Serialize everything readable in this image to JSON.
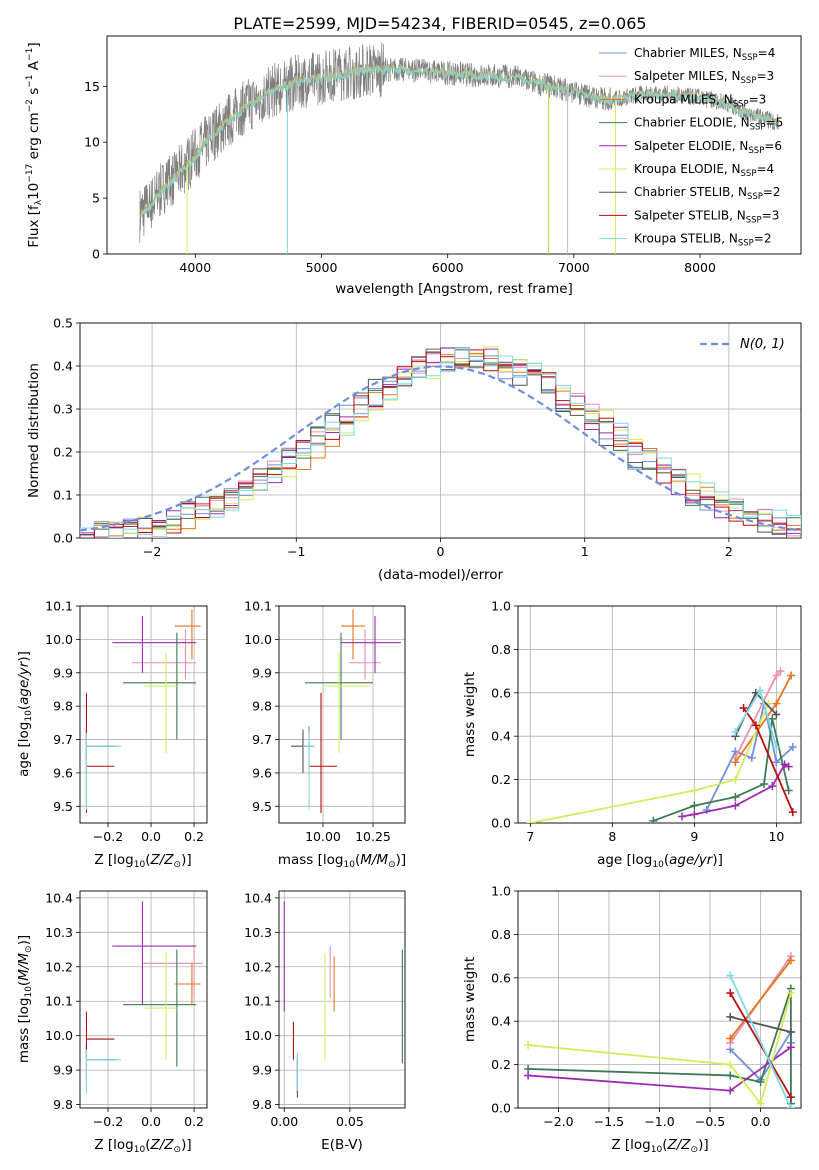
{
  "title": "PLATE=2599, MJD=54234, FIBERID=0545, z=0.065",
  "colors": {
    "Chabrier MILES": "#6f8fdd",
    "Salpeter MILES": "#e98fb2",
    "Kroupa MILES": "#e8741f",
    "Chabrier ELODIE": "#3d7a55",
    "Salpeter ELODIE": "#9b2db0",
    "Kroupa ELODIE": "#d7ea5d",
    "Chabrier STELIB": "#555555",
    "Salpeter STELIB": "#b80f0f",
    "Kroupa STELIB": "#7fd8e2",
    "data": "#808080"
  },
  "chart_data": [
    {
      "id": "spectrum",
      "type": "line",
      "xlabel": "wavelength [Angstrom, rest frame]",
      "ylabel": "Flux [f_λ10^-17 erg cm^-2 s^-1 A^-1]",
      "xlim": [
        3300,
        8800
      ],
      "ylim": [
        0,
        19.5
      ],
      "xticks": [
        4000,
        5000,
        6000,
        7000,
        8000
      ],
      "yticks": [
        0,
        5,
        10,
        15
      ],
      "grid": false,
      "legend_position": "top-right",
      "legend": [
        {
          "name": "Chabrier MILES",
          "nssp": "4"
        },
        {
          "name": "Salpeter MILES",
          "nssp": "3"
        },
        {
          "name": "Kroupa MILES",
          "nssp": "3"
        },
        {
          "name": "Chabrier ELODIE",
          "nssp": "5"
        },
        {
          "name": "Salpeter ELODIE",
          "nssp": "6"
        },
        {
          "name": "Kroupa ELODIE",
          "nssp": "4"
        },
        {
          "name": "Chabrier STELIB",
          "nssp": "2"
        },
        {
          "name": "Salpeter STELIB",
          "nssp": "3"
        },
        {
          "name": "Kroupa STELIB",
          "nssp": "2"
        }
      ],
      "continuum": {
        "x": [
          3560,
          3650,
          3750,
          3850,
          3950,
          4050,
          4150,
          4250,
          4350,
          4450,
          4550,
          4650,
          4750,
          4850,
          5000,
          5200,
          5400,
          5600,
          5800,
          6000,
          6200,
          6400,
          6550,
          6700,
          6900,
          7100,
          7250,
          7400,
          7600,
          7800,
          8000,
          8200,
          8400,
          8600
        ],
        "y": [
          3.5,
          4.5,
          6.0,
          7.0,
          8.2,
          9.5,
          10.8,
          11.8,
          12.8,
          13.5,
          14.2,
          14.8,
          15.2,
          15.5,
          15.8,
          16.2,
          16.5,
          16.5,
          16.4,
          16.2,
          16.0,
          15.9,
          15.8,
          15.3,
          14.8,
          14.2,
          13.8,
          14.0,
          14.4,
          14.2,
          14.0,
          13.5,
          12.5,
          11.8
        ]
      },
      "sharp_features": [
        {
          "x": 3935,
          "y": 0
        },
        {
          "x": 4730,
          "y": 0
        },
        {
          "x": 6800,
          "y": 0
        },
        {
          "x": 6950,
          "y": 0
        },
        {
          "x": 7330,
          "y": 0
        }
      ]
    },
    {
      "id": "residual-hist",
      "type": "line",
      "xlabel": "(data-model)/error",
      "ylabel": "Normed distribution",
      "xlim": [
        -2.5,
        2.5
      ],
      "ylim": [
        0,
        0.5
      ],
      "xticks": [
        -2,
        -1,
        0,
        1,
        2
      ],
      "yticks": [
        0.0,
        0.1,
        0.2,
        0.3,
        0.4,
        0.5
      ],
      "grid": true,
      "legend_position": "top-right",
      "legend_label": "N(0, 1)",
      "series_colors": [
        "#6f8fdd",
        "#e98fb2",
        "#e8741f",
        "#3d7a55",
        "#9b2db0",
        "#d7ea5d",
        "#555555",
        "#b80f0f",
        "#7fd8e2"
      ]
    },
    {
      "id": "age-vs-Z",
      "type": "scatter",
      "xlabel": "Z [log10(Z/Z⊙)]",
      "ylabel": "age  [log10(age/yr)]",
      "xlim": [
        -0.33,
        0.26
      ],
      "ylim": [
        9.45,
        10.1
      ],
      "xticks": [
        -0.2,
        0.0,
        0.2
      ],
      "yticks": [
        9.5,
        9.6,
        9.7,
        9.8,
        9.9,
        10.0,
        10.1
      ],
      "grid": true,
      "points": [
        {
          "c": "Chabrier MILES",
          "x": -0.3,
          "y": 9.68,
          "dx": [
            0.0,
            0.0
          ],
          "dy": [
            0.06,
            0.06
          ]
        },
        {
          "c": "Salpeter MILES",
          "x": 0.16,
          "y": 9.93,
          "dx": [
            0.25,
            0.05
          ],
          "dy": [
            0.05,
            0.1
          ]
        },
        {
          "c": "Kroupa MILES",
          "x": 0.19,
          "y": 10.04,
          "dx": [
            0.08,
            0.04
          ],
          "dy": [
            0.1,
            0.05
          ]
        },
        {
          "c": "Chabrier ELODIE",
          "x": 0.12,
          "y": 9.87,
          "dx": [
            0.25,
            0.09
          ],
          "dy": [
            0.17,
            0.15
          ]
        },
        {
          "c": "Salpeter ELODIE",
          "x": -0.04,
          "y": 9.99,
          "dx": [
            0.14,
            0.25
          ],
          "dy": [
            0.09,
            0.08
          ]
        },
        {
          "c": "Kroupa ELODIE",
          "x": 0.07,
          "y": 9.86,
          "dx": [
            0.1,
            0.05
          ],
          "dy": [
            0.2,
            0.1
          ]
        },
        {
          "c": "Chabrier STELIB",
          "x": -0.3,
          "y": 9.68,
          "dx": [
            0.0,
            0.14
          ],
          "dy": [
            0.08,
            0.05
          ]
        },
        {
          "c": "Salpeter STELIB",
          "x": -0.3,
          "y": 9.62,
          "dx": [
            0.0,
            0.13
          ],
          "dy": [
            0.14,
            0.22
          ]
        },
        {
          "c": "Kroupa STELIB",
          "x": -0.3,
          "y": 9.68,
          "dx": [
            0.0,
            0.16
          ],
          "dy": [
            0.19,
            0.04
          ]
        }
      ]
    },
    {
      "id": "age-vs-mass",
      "type": "scatter",
      "xlabel": "mass [log10(M/M⊙)]",
      "ylabel": "",
      "xlim": [
        9.78,
        10.41
      ],
      "ylim": [
        9.45,
        10.1
      ],
      "xticks": [
        10.0,
        10.25
      ],
      "yticks": [
        9.5,
        9.6,
        9.7,
        9.8,
        9.9,
        10.0,
        10.1
      ],
      "grid": true,
      "points": [
        {
          "c": "Chabrier MILES",
          "x": 9.93,
          "y": 9.68,
          "dx": [
            0.0,
            0.0
          ],
          "dy": [
            0.06,
            0.06
          ]
        },
        {
          "c": "Salpeter MILES",
          "x": 10.21,
          "y": 9.93,
          "dx": [
            0.08,
            0.08
          ],
          "dy": [
            0.05,
            0.1
          ]
        },
        {
          "c": "Kroupa MILES",
          "x": 10.15,
          "y": 10.04,
          "dx": [
            0.06,
            0.06
          ],
          "dy": [
            0.1,
            0.05
          ]
        },
        {
          "c": "Chabrier ELODIE",
          "x": 10.09,
          "y": 9.87,
          "dx": [
            0.18,
            0.16
          ],
          "dy": [
            0.17,
            0.15
          ]
        },
        {
          "c": "Salpeter ELODIE",
          "x": 10.26,
          "y": 9.99,
          "dx": [
            0.17,
            0.13
          ],
          "dy": [
            0.09,
            0.08
          ]
        },
        {
          "c": "Kroupa ELODIE",
          "x": 10.08,
          "y": 9.86,
          "dx": [
            0.08,
            0.16
          ],
          "dy": [
            0.2,
            0.1
          ]
        },
        {
          "c": "Chabrier STELIB",
          "x": 9.9,
          "y": 9.68,
          "dx": [
            0.06,
            0.05
          ],
          "dy": [
            0.08,
            0.05
          ]
        },
        {
          "c": "Salpeter STELIB",
          "x": 9.99,
          "y": 9.62,
          "dx": [
            0.06,
            0.08
          ],
          "dy": [
            0.14,
            0.22
          ]
        },
        {
          "c": "Kroupa STELIB",
          "x": 9.93,
          "y": 9.68,
          "dx": [
            0.03,
            0.03
          ],
          "dy": [
            0.19,
            0.04
          ]
        }
      ]
    },
    {
      "id": "weight-vs-age",
      "type": "line",
      "xlabel": "age  [log10(age/yr)]",
      "ylabel": "mass weight",
      "xlim": [
        6.85,
        10.3
      ],
      "ylim": [
        0,
        1.0
      ],
      "xticks": [
        7,
        8,
        9,
        10
      ],
      "yticks": [
        0.0,
        0.2,
        0.4,
        0.6,
        0.8,
        1.0
      ],
      "grid": true,
      "series": [
        {
          "name": "Chabrier MILES",
          "x": [
            9.15,
            9.5,
            9.7,
            9.85,
            10.0,
            10.2
          ],
          "y": [
            0.06,
            0.33,
            0.3,
            0.55,
            0.28,
            0.35
          ]
        },
        {
          "name": "Salpeter MILES",
          "x": [
            9.5,
            10.0,
            10.05
          ],
          "y": [
            0.3,
            0.68,
            0.7
          ]
        },
        {
          "name": "Kroupa MILES",
          "x": [
            9.5,
            10.0,
            10.18
          ],
          "y": [
            0.28,
            0.55,
            0.68
          ]
        },
        {
          "name": "Chabrier ELODIE",
          "x": [
            8.5,
            9.0,
            9.5,
            9.85,
            9.95,
            10.15
          ],
          "y": [
            0.01,
            0.08,
            0.12,
            0.18,
            0.48,
            0.15
          ]
        },
        {
          "name": "Salpeter ELODIE",
          "x": [
            8.85,
            9.0,
            9.5,
            9.95,
            10.1,
            10.15
          ],
          "y": [
            0.03,
            0.04,
            0.08,
            0.17,
            0.27,
            0.26
          ]
        },
        {
          "name": "Kroupa ELODIE",
          "x": [
            7.0,
            9.0,
            9.5,
            9.9
          ],
          "y": [
            0.0,
            0.15,
            0.2,
            0.55
          ]
        },
        {
          "name": "Chabrier STELIB",
          "x": [
            9.5,
            9.75,
            10.0
          ],
          "y": [
            0.4,
            0.6,
            0.5
          ]
        },
        {
          "name": "Salpeter STELIB",
          "x": [
            9.6,
            9.75,
            10.2
          ],
          "y": [
            0.53,
            0.45,
            0.05
          ]
        },
        {
          "name": "Kroupa STELIB",
          "x": [
            9.5,
            9.8,
            10.0
          ],
          "y": [
            0.42,
            0.61,
            0.35
          ]
        }
      ]
    },
    {
      "id": "mass-vs-Z",
      "type": "scatter",
      "xlabel": "Z [log10(Z/Z⊙)]",
      "ylabel": "mass [log10(M/M⊙)]",
      "xlim": [
        -0.33,
        0.26
      ],
      "ylim": [
        9.79,
        10.42
      ],
      "xticks": [
        -0.2,
        0.0,
        0.2
      ],
      "yticks": [
        9.8,
        9.9,
        10.0,
        10.1,
        10.2,
        10.3,
        10.4
      ],
      "grid": true,
      "points": [
        {
          "c": "Chabrier MILES",
          "x": -0.3,
          "y": 9.93,
          "dx": [
            0.0,
            0.0
          ],
          "dy": [
            0.05,
            0.04
          ]
        },
        {
          "c": "Salpeter MILES",
          "x": 0.2,
          "y": 10.21,
          "dx": [
            0.24,
            0.04
          ],
          "dy": [
            0.1,
            0.05
          ]
        },
        {
          "c": "Kroupa MILES",
          "x": 0.19,
          "y": 10.15,
          "dx": [
            0.08,
            0.04
          ],
          "dy": [
            0.06,
            0.06
          ]
        },
        {
          "c": "Chabrier ELODIE",
          "x": 0.12,
          "y": 10.09,
          "dx": [
            0.25,
            0.09
          ],
          "dy": [
            0.18,
            0.16
          ]
        },
        {
          "c": "Salpeter ELODIE",
          "x": -0.04,
          "y": 10.26,
          "dx": [
            0.14,
            0.25
          ],
          "dy": [
            0.17,
            0.13
          ]
        },
        {
          "c": "Kroupa ELODIE",
          "x": 0.07,
          "y": 10.08,
          "dx": [
            0.1,
            0.05
          ],
          "dy": [
            0.15,
            0.16
          ]
        },
        {
          "c": "Chabrier STELIB",
          "x": -0.3,
          "y": 9.93,
          "dx": [
            0.0,
            0.14
          ],
          "dy": [
            0.06,
            0.05
          ]
        },
        {
          "c": "Salpeter STELIB",
          "x": -0.3,
          "y": 9.99,
          "dx": [
            0.0,
            0.13
          ],
          "dy": [
            0.06,
            0.08
          ]
        },
        {
          "c": "Kroupa STELIB",
          "x": -0.3,
          "y": 9.93,
          "dx": [
            0.0,
            0.16
          ],
          "dy": [
            0.1,
            0.03
          ]
        }
      ]
    },
    {
      "id": "mass-vs-ebv",
      "type": "scatter",
      "xlabel": "E(B-V)",
      "ylabel": "",
      "xlim": [
        -0.004,
        0.092
      ],
      "ylim": [
        9.79,
        10.42
      ],
      "xticks": [
        0.0,
        0.05
      ],
      "yticks": [
        9.8,
        9.9,
        10.0,
        10.1,
        10.2,
        10.3,
        10.4
      ],
      "grid": true,
      "points": [
        {
          "c": "Chabrier MILES",
          "x": 0.01,
          "y": 9.9,
          "dx": [
            0,
            0
          ],
          "dy": [
            0.05,
            0.04
          ]
        },
        {
          "c": "Salpeter MILES",
          "x": 0.035,
          "y": 10.21,
          "dx": [
            0,
            0
          ],
          "dy": [
            0.1,
            0.05
          ]
        },
        {
          "c": "Kroupa MILES",
          "x": 0.038,
          "y": 10.13,
          "dx": [
            0,
            0
          ],
          "dy": [
            0.06,
            0.1
          ]
        },
        {
          "c": "Chabrier ELODIE",
          "x": 0.09,
          "y": 10.08,
          "dx": [
            0,
            0
          ],
          "dy": [
            0.16,
            0.17
          ]
        },
        {
          "c": "Salpeter ELODIE",
          "x": 0.0,
          "y": 10.24,
          "dx": [
            0,
            0
          ],
          "dy": [
            0.17,
            0.15
          ]
        },
        {
          "c": "Kroupa ELODIE",
          "x": 0.031,
          "y": 10.08,
          "dx": [
            0,
            0
          ],
          "dy": [
            0.15,
            0.16
          ]
        },
        {
          "c": "Chabrier STELIB",
          "x": 0.01,
          "y": 9.88,
          "dx": [
            0,
            0
          ],
          "dy": [
            0.06,
            0.05
          ]
        },
        {
          "c": "Salpeter STELIB",
          "x": 0.007,
          "y": 9.99,
          "dx": [
            0,
            0
          ],
          "dy": [
            0.06,
            0.05
          ]
        },
        {
          "c": "Kroupa STELIB",
          "x": 0.01,
          "y": 9.9,
          "dx": [
            0,
            0
          ],
          "dy": [
            0.06,
            0.05
          ]
        }
      ]
    },
    {
      "id": "weight-vs-Z",
      "type": "line",
      "xlabel": "Z [log10(Z/Z⊙)]",
      "ylabel": "mass weight",
      "xlim": [
        -2.4,
        0.4
      ],
      "ylim": [
        0,
        1.0
      ],
      "xticks": [
        -2.0,
        -1.5,
        -1.0,
        -0.5,
        0.0
      ],
      "yticks": [
        0.0,
        0.2,
        0.4,
        0.6,
        0.8,
        1.0
      ],
      "grid": true,
      "series": [
        {
          "name": "Chabrier MILES",
          "x": [
            -0.3,
            0.0,
            0.3,
            0.3
          ],
          "y": [
            0.27,
            0.13,
            0.35,
            0.3
          ]
        },
        {
          "name": "Salpeter MILES",
          "x": [
            -0.3,
            0.3
          ],
          "y": [
            0.3,
            0.7
          ]
        },
        {
          "name": "Kroupa MILES",
          "x": [
            -0.3,
            0.3
          ],
          "y": [
            0.32,
            0.68
          ]
        },
        {
          "name": "Chabrier ELODIE",
          "x": [
            -2.3,
            -0.3,
            0.0,
            0.3,
            0.3
          ],
          "y": [
            0.18,
            0.15,
            0.12,
            0.55,
            0.02
          ]
        },
        {
          "name": "Salpeter ELODIE",
          "x": [
            -2.3,
            -0.3,
            0.3
          ],
          "y": [
            0.15,
            0.08,
            0.28
          ]
        },
        {
          "name": "Kroupa ELODIE",
          "x": [
            -2.3,
            -0.3,
            0.0,
            0.3
          ],
          "y": [
            0.29,
            0.2,
            0.02,
            0.53
          ]
        },
        {
          "name": "Chabrier STELIB",
          "x": [
            -0.3,
            0.3
          ],
          "y": [
            0.42,
            0.35
          ]
        },
        {
          "name": "Salpeter STELIB",
          "x": [
            -0.3,
            0.3
          ],
          "y": [
            0.53,
            0.05
          ]
        },
        {
          "name": "Kroupa STELIB",
          "x": [
            -0.3,
            0.3
          ],
          "y": [
            0.61,
            0.0
          ]
        }
      ]
    }
  ]
}
